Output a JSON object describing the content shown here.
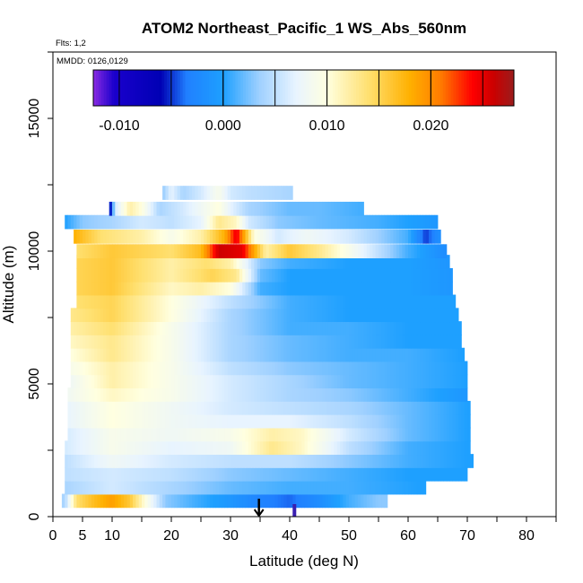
{
  "chart_data": {
    "type": "heatmap",
    "title": "ATOM2 Northeast_Pacific_1 WS_Abs_560nm",
    "flights_note": "Flts: 1,2",
    "dates_note": "MMDD: 0126,0129",
    "xlabel": "Latitude (deg N)",
    "ylabel": "Altitude (m)",
    "xlim": [
      0,
      85
    ],
    "ylim": [
      0,
      17500
    ],
    "x_ticks": [
      0,
      5,
      10,
      20,
      30,
      40,
      50,
      60,
      70,
      80
    ],
    "x_tick_labels": [
      "0",
      "5",
      "10",
      "20",
      "30",
      "40",
      "50",
      "60",
      "70",
      "80"
    ],
    "y_ticks": [
      0,
      5000,
      10000,
      15000
    ],
    "y_tick_labels": [
      "0",
      "5000",
      "10000",
      "15000"
    ],
    "colorbar": {
      "range": [
        -0.0125,
        0.028
      ],
      "tick_values": [
        -0.01,
        0.0,
        0.01,
        0.02
      ],
      "tick_labels": [
        "-0.010",
        "0.000",
        "0.010",
        "0.020"
      ],
      "segment_edges": [
        -0.005,
        0.0,
        0.005,
        0.01,
        0.015,
        0.02,
        0.025
      ],
      "color_stops": [
        {
          "v": -0.0125,
          "c": "#8a2be2"
        },
        {
          "v": -0.0105,
          "c": "#1a00cc"
        },
        {
          "v": -0.006,
          "c": "#0000b4"
        },
        {
          "v": -0.0035,
          "c": "#2080ff"
        },
        {
          "v": 0.0,
          "c": "#1ea0ff"
        },
        {
          "v": 0.0035,
          "c": "#9fd0ff"
        },
        {
          "v": 0.007,
          "c": "#e8f4ff"
        },
        {
          "v": 0.01,
          "c": "#ffffe0"
        },
        {
          "v": 0.014,
          "c": "#ffe070"
        },
        {
          "v": 0.018,
          "c": "#ffb000"
        },
        {
          "v": 0.021,
          "c": "#ff7a00"
        },
        {
          "v": 0.024,
          "c": "#ff0000"
        },
        {
          "v": 0.026,
          "c": "#cc0000"
        },
        {
          "v": 0.028,
          "c": "#9b1c1c"
        }
      ]
    },
    "layers": [
      {
        "alt": 600,
        "lat_min": 1.5,
        "lat_max": 56.5,
        "values": [
          [
            2,
            0.004
          ],
          [
            4,
            0.014
          ],
          [
            7,
            0.017
          ],
          [
            10,
            0.019
          ],
          [
            13,
            0.016
          ],
          [
            16,
            0.009
          ],
          [
            19,
            0.003
          ],
          [
            24,
            0.001
          ],
          [
            30,
            -0.001
          ],
          [
            35,
            -0.003
          ],
          [
            40,
            -0.004
          ],
          [
            45,
            -0.002
          ],
          [
            50,
            0.001
          ],
          [
            55,
            0.003
          ]
        ]
      },
      {
        "alt": 1100,
        "lat_min": 2,
        "lat_max": 63,
        "values": [
          [
            2,
            0.004
          ],
          [
            10,
            0.006
          ],
          [
            20,
            0.004
          ],
          [
            30,
            0.002
          ],
          [
            40,
            0.001
          ],
          [
            50,
            0.001
          ],
          [
            62,
            0.0
          ]
        ]
      },
      {
        "alt": 1600,
        "lat_min": 2,
        "lat_max": 70,
        "values": [
          [
            2,
            0.005
          ],
          [
            10,
            0.006
          ],
          [
            20,
            0.005
          ],
          [
            30,
            0.003
          ],
          [
            40,
            0.002
          ],
          [
            50,
            0.001
          ],
          [
            60,
            0.0
          ],
          [
            70,
            0.0
          ]
        ]
      },
      {
        "alt": 2100,
        "lat_min": 2,
        "lat_max": 71,
        "values": [
          [
            2,
            0.005
          ],
          [
            10,
            0.008
          ],
          [
            20,
            0.006
          ],
          [
            30,
            0.005
          ],
          [
            40,
            0.005
          ],
          [
            50,
            0.003
          ],
          [
            60,
            0.001
          ],
          [
            70,
            0.0
          ]
        ]
      },
      {
        "alt": 2600,
        "lat_min": 2,
        "lat_max": 70.5,
        "values": [
          [
            2,
            0.006
          ],
          [
            10,
            0.009
          ],
          [
            20,
            0.007
          ],
          [
            30,
            0.008
          ],
          [
            37,
            0.013
          ],
          [
            42,
            0.011
          ],
          [
            50,
            0.005
          ],
          [
            60,
            0.001
          ],
          [
            70,
            0.0
          ]
        ]
      },
      {
        "alt": 3100,
        "lat_min": 2.5,
        "lat_max": 70.5,
        "values": [
          [
            2,
            0.006
          ],
          [
            10,
            0.009
          ],
          [
            20,
            0.008
          ],
          [
            30,
            0.009
          ],
          [
            37,
            0.012
          ],
          [
            42,
            0.011
          ],
          [
            50,
            0.006
          ],
          [
            60,
            0.002
          ],
          [
            70,
            0.0
          ]
        ]
      },
      {
        "alt": 3600,
        "lat_min": 2.5,
        "lat_max": 70.5,
        "values": [
          [
            2,
            0.007
          ],
          [
            10,
            0.01
          ],
          [
            20,
            0.008
          ],
          [
            30,
            0.007
          ],
          [
            40,
            0.007
          ],
          [
            50,
            0.005
          ],
          [
            60,
            0.002
          ],
          [
            70,
            0.0
          ]
        ]
      },
      {
        "alt": 4100,
        "lat_min": 2.5,
        "lat_max": 70.5,
        "values": [
          [
            2,
            0.007
          ],
          [
            10,
            0.01
          ],
          [
            20,
            0.008
          ],
          [
            30,
            0.006
          ],
          [
            40,
            0.005
          ],
          [
            50,
            0.004
          ],
          [
            60,
            0.002
          ],
          [
            70,
            0.0
          ]
        ]
      },
      {
        "alt": 4600,
        "lat_min": 2.5,
        "lat_max": 70,
        "values": [
          [
            2,
            0.008
          ],
          [
            10,
            0.011
          ],
          [
            20,
            0.009
          ],
          [
            30,
            0.006
          ],
          [
            40,
            0.004
          ],
          [
            50,
            0.003
          ],
          [
            60,
            0.001
          ],
          [
            70,
            -0.001
          ]
        ]
      },
      {
        "alt": 5100,
        "lat_min": 3,
        "lat_max": 70,
        "values": [
          [
            3,
            0.008
          ],
          [
            10,
            0.012
          ],
          [
            20,
            0.009
          ],
          [
            30,
            0.006
          ],
          [
            40,
            0.004
          ],
          [
            50,
            0.002
          ],
          [
            60,
            0.001
          ],
          [
            70,
            0.0
          ]
        ]
      },
      {
        "alt": 5600,
        "lat_min": 3,
        "lat_max": 70,
        "values": [
          [
            3,
            0.009
          ],
          [
            10,
            0.012
          ],
          [
            20,
            0.009
          ],
          [
            30,
            0.005
          ],
          [
            40,
            0.003
          ],
          [
            50,
            0.002
          ],
          [
            60,
            0.001
          ],
          [
            70,
            0.0
          ]
        ]
      },
      {
        "alt": 6100,
        "lat_min": 3,
        "lat_max": 69.5,
        "values": [
          [
            3,
            0.01
          ],
          [
            10,
            0.013
          ],
          [
            20,
            0.009
          ],
          [
            30,
            0.004
          ],
          [
            40,
            0.002
          ],
          [
            50,
            0.001
          ],
          [
            60,
            0.001
          ],
          [
            69,
            0.0
          ]
        ]
      },
      {
        "alt": 6600,
        "lat_min": 3,
        "lat_max": 69,
        "values": [
          [
            3,
            0.011
          ],
          [
            10,
            0.013
          ],
          [
            20,
            0.009
          ],
          [
            30,
            0.004
          ],
          [
            40,
            0.002
          ],
          [
            50,
            0.001
          ],
          [
            60,
            0.0
          ],
          [
            69,
            0.0
          ]
        ]
      },
      {
        "alt": 7100,
        "lat_min": 3,
        "lat_max": 69,
        "values": [
          [
            3,
            0.012
          ],
          [
            10,
            0.014
          ],
          [
            20,
            0.009
          ],
          [
            30,
            0.004
          ],
          [
            40,
            0.001
          ],
          [
            50,
            0.001
          ],
          [
            60,
            0.0
          ],
          [
            69,
            0.0
          ]
        ]
      },
      {
        "alt": 7600,
        "lat_min": 3,
        "lat_max": 68.5,
        "values": [
          [
            3,
            0.013
          ],
          [
            10,
            0.015
          ],
          [
            20,
            0.01
          ],
          [
            30,
            0.004
          ],
          [
            40,
            0.001
          ],
          [
            50,
            0.0
          ],
          [
            60,
            0.0
          ],
          [
            68,
            0.0
          ]
        ]
      },
      {
        "alt": 8100,
        "lat_min": 4,
        "lat_max": 68,
        "values": [
          [
            4,
            0.014
          ],
          [
            10,
            0.015
          ],
          [
            20,
            0.01
          ],
          [
            30,
            0.005
          ],
          [
            40,
            0.001
          ],
          [
            50,
            0.0
          ],
          [
            60,
            0.0
          ],
          [
            68,
            0.0
          ]
        ]
      },
      {
        "alt": 8600,
        "lat_min": 4,
        "lat_max": 67.5,
        "values": [
          [
            4,
            0.015
          ],
          [
            10,
            0.016
          ],
          [
            20,
            0.011
          ],
          [
            25,
            0.012
          ],
          [
            30,
            0.01
          ],
          [
            35,
            0.001
          ],
          [
            40,
            0.0
          ],
          [
            50,
            0.0
          ],
          [
            60,
            0.0
          ],
          [
            67,
            -0.001
          ]
        ]
      },
      {
        "alt": 9100,
        "lat_min": 4,
        "lat_max": 67.5,
        "values": [
          [
            4,
            0.015
          ],
          [
            10,
            0.016
          ],
          [
            20,
            0.012
          ],
          [
            27,
            0.015
          ],
          [
            31,
            0.013
          ],
          [
            35,
            0.002
          ],
          [
            40,
            0.0
          ],
          [
            50,
            0.0
          ],
          [
            60,
            0.0
          ],
          [
            67,
            -0.001
          ]
        ]
      },
      {
        "alt": 9600,
        "lat_min": 4,
        "lat_max": 67,
        "values": [
          [
            4,
            0.015
          ],
          [
            10,
            0.016
          ],
          [
            20,
            0.012
          ],
          [
            26,
            0.014
          ],
          [
            30,
            0.012
          ],
          [
            35,
            0.003
          ],
          [
            40,
            0.001
          ],
          [
            50,
            0.0
          ],
          [
            60,
            0.0
          ],
          [
            66,
            -0.001
          ]
        ]
      },
      {
        "alt": 10000,
        "lat_min": 4,
        "lat_max": 66.5,
        "values": [
          [
            4,
            0.014
          ],
          [
            10,
            0.016
          ],
          [
            20,
            0.014
          ],
          [
            25,
            0.017
          ],
          [
            28,
            0.026
          ],
          [
            32,
            0.025
          ],
          [
            36,
            0.012
          ],
          [
            40,
            0.016
          ],
          [
            45,
            0.013
          ],
          [
            50,
            0.009
          ],
          [
            55,
            0.005
          ],
          [
            60,
            0.001
          ],
          [
            66,
            -0.002
          ]
        ]
      },
      {
        "alt": 10550,
        "lat_min": 3.5,
        "lat_max": 65.5,
        "values": [
          [
            3.5,
            0.018
          ],
          [
            8,
            0.014
          ],
          [
            15,
            0.012
          ],
          [
            20,
            0.009
          ],
          [
            25,
            0.012
          ],
          [
            29,
            0.018
          ],
          [
            31,
            0.025
          ],
          [
            34,
            0.01
          ],
          [
            38,
            0.006
          ],
          [
            43,
            0.008
          ],
          [
            50,
            0.006
          ],
          [
            56,
            0.003
          ],
          [
            60,
            0.001
          ],
          [
            63,
            -0.005
          ],
          [
            65,
            -0.002
          ]
        ]
      },
      {
        "alt": 11100,
        "lat_min": 2,
        "lat_max": 65,
        "values": [
          [
            2,
            0.0
          ],
          [
            5,
            0.003
          ],
          [
            10,
            0.004
          ],
          [
            15,
            0.006
          ],
          [
            20,
            0.005
          ],
          [
            25,
            0.007
          ],
          [
            28,
            0.013
          ],
          [
            31,
            0.011
          ],
          [
            33,
            0.006
          ],
          [
            38,
            0.003
          ],
          [
            45,
            0.002
          ],
          [
            55,
            0.001
          ],
          [
            65,
            -0.001
          ]
        ]
      },
      {
        "alt": 11600,
        "lat_min": 9.5,
        "lat_max": 52.5,
        "values": [
          [
            9.5,
            -0.009
          ],
          [
            10.5,
            0.006
          ],
          [
            13,
            0.012
          ],
          [
            15,
            0.01
          ],
          [
            18,
            0.004
          ],
          [
            22,
            0.006
          ],
          [
            25,
            0.008
          ],
          [
            28,
            0.01
          ],
          [
            30,
            0.007
          ],
          [
            33,
            0.004
          ],
          [
            40,
            0.002
          ],
          [
            45,
            0.002
          ],
          [
            52,
            0.001
          ]
        ]
      },
      {
        "alt": 12200,
        "lat_min": 18.5,
        "lat_max": 40.5,
        "values": [
          [
            18.5,
            0.003
          ],
          [
            20,
            0.007
          ],
          [
            22,
            0.004
          ],
          [
            25,
            0.006
          ],
          [
            28,
            0.009
          ],
          [
            30,
            0.006
          ],
          [
            33,
            0.005
          ],
          [
            40,
            0.004
          ]
        ]
      }
    ],
    "tick_marks_at_zero": [
      {
        "lat": 34.8,
        "style": "arrow",
        "color": "#000000"
      },
      {
        "lat": 40.8,
        "style": "bar",
        "color": "#3a1fb0"
      }
    ]
  }
}
